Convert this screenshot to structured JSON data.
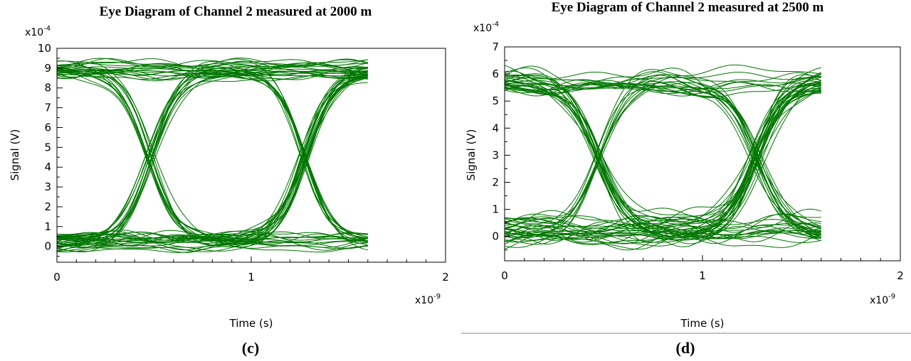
{
  "chart_data": [
    {
      "type": "line",
      "panel_label": "(c)",
      "title": "Eye Diagram of Channel 2 measured at 2000 m",
      "xlabel": "Time (s)",
      "ylabel": "Signal (V)",
      "x_multiplier": "x10",
      "x_multiplier_exp": "-9",
      "y_multiplier": "x10",
      "y_multiplier_exp": "-4",
      "xlim": [
        0,
        2
      ],
      "ylim": [
        -0.8,
        10
      ],
      "x_ticks": [
        "0",
        "1",
        "2"
      ],
      "y_ticks": [
        "0",
        "1",
        "2",
        "3",
        "4",
        "5",
        "6",
        "7",
        "8",
        "9",
        "10"
      ],
      "trace_end": 1.6,
      "bit_period": 0.8,
      "crossings": [
        0.48,
        1.28
      ],
      "high_level": 8.9,
      "low_level": 0.2,
      "crossing_level": 4.2,
      "trace_color": "#007700"
    },
    {
      "type": "line",
      "panel_label": "(d)",
      "title": "Eye Diagram of Channel 2 measured at 2500 m",
      "xlabel": "Time (s)",
      "ylabel": "Signal (V)",
      "x_multiplier": "x10",
      "x_multiplier_exp": "-9",
      "y_multiplier": "x10",
      "y_multiplier_exp": "-4",
      "xlim": [
        0,
        2
      ],
      "ylim": [
        -0.9,
        7
      ],
      "x_ticks": [
        "0",
        "1",
        "2"
      ],
      "y_ticks": [
        "0",
        "1",
        "2",
        "3",
        "4",
        "5",
        "6",
        "7"
      ],
      "trace_end": 1.6,
      "bit_period": 0.8,
      "crossings": [
        0.48,
        1.28
      ],
      "high_level": 5.7,
      "low_level": 0.2,
      "crossing_level": 2.7,
      "trace_color": "#007700"
    }
  ]
}
